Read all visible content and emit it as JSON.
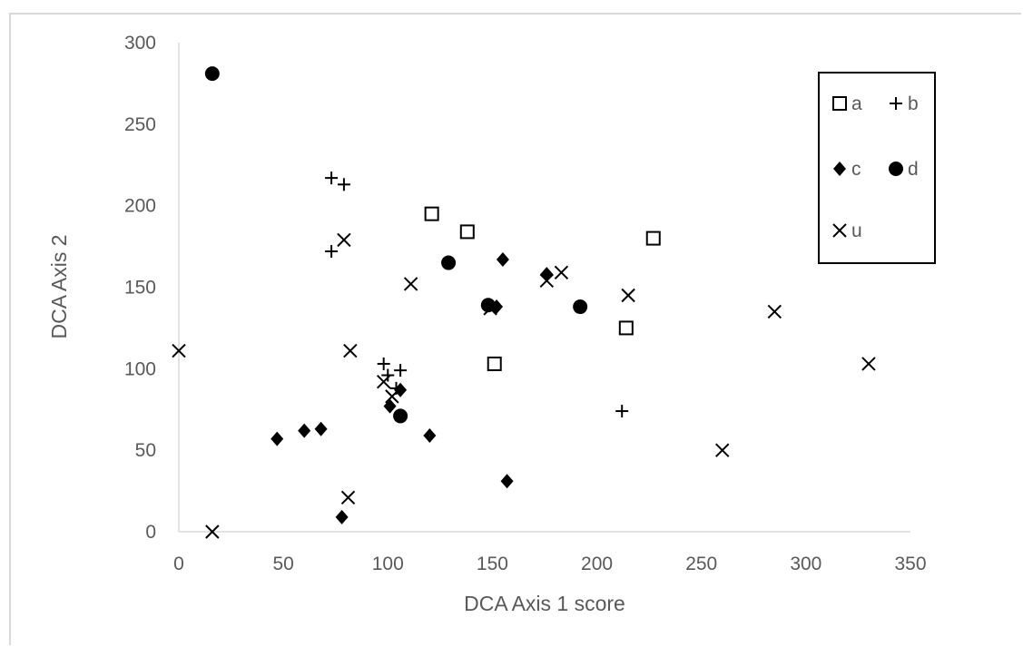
{
  "chart_data": {
    "type": "scatter",
    "title": "",
    "xlabel": "DCA Axis 1 score",
    "ylabel": "DCA Axis 2",
    "xlim": [
      0,
      350
    ],
    "ylim": [
      0,
      300
    ],
    "x_ticks": [
      "0",
      "50",
      "100",
      "150",
      "200",
      "250",
      "300",
      "350"
    ],
    "y_ticks": [
      "0",
      "50",
      "100",
      "150",
      "200",
      "250",
      "300"
    ],
    "grid": false,
    "legend_position": "top-right",
    "series": [
      {
        "name": "a",
        "marker": "open-square",
        "x": [
          121,
          138,
          151,
          214,
          227
        ],
        "y": [
          195,
          184,
          103,
          125,
          180
        ]
      },
      {
        "name": "b",
        "marker": "plus",
        "x": [
          73,
          79,
          73,
          98,
          100,
          106,
          104,
          212
        ],
        "y": [
          217,
          213,
          172,
          103,
          96,
          99,
          88,
          74
        ]
      },
      {
        "name": "c",
        "marker": "diamond",
        "x": [
          155,
          176,
          152,
          47,
          60,
          68,
          101,
          106,
          120,
          157,
          78
        ],
        "y": [
          167,
          158,
          138,
          57,
          62,
          63,
          77,
          87,
          59,
          31,
          9
        ]
      },
      {
        "name": "d",
        "marker": "filled-circle",
        "x": [
          16,
          129,
          148,
          192,
          106
        ],
        "y": [
          281,
          165,
          139,
          138,
          71
        ]
      },
      {
        "name": "u",
        "marker": "x",
        "x": [
          79,
          111,
          183,
          176,
          215,
          149,
          285,
          0,
          82,
          330,
          98,
          102,
          260,
          81,
          16
        ],
        "y": [
          179,
          152,
          159,
          154,
          145,
          137,
          135,
          111,
          111,
          103,
          92,
          83,
          50,
          21,
          0
        ]
      }
    ]
  }
}
